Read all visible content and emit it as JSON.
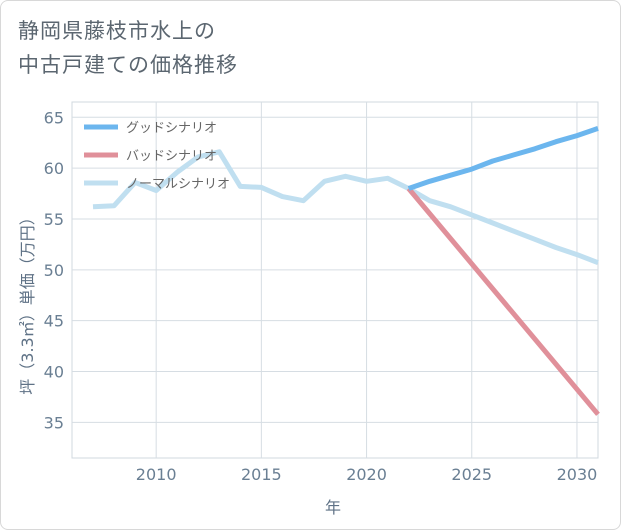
{
  "title": {
    "line1": "静岡県藤枝市水上の",
    "line2": "中古戸建ての価格推移"
  },
  "chart_data": {
    "type": "line",
    "xlabel": "年",
    "ylabel": "坪（3.3㎡）単価（万円）",
    "xlim": [
      2006,
      2031
    ],
    "ylim": [
      31.5,
      66.5
    ],
    "xticks": [
      2010,
      2015,
      2020,
      2025,
      2030
    ],
    "yticks": [
      35,
      40,
      45,
      50,
      55,
      60,
      65
    ],
    "grid": true,
    "legend_position": "top-left",
    "series": [
      {
        "name": "グッドシナリオ",
        "color": "#6cb6ee",
        "x": [
          2022,
          2023,
          2024,
          2025,
          2026,
          2027,
          2028,
          2029,
          2030,
          2031
        ],
        "values": [
          58.0,
          58.7,
          59.3,
          59.9,
          60.7,
          61.3,
          61.9,
          62.6,
          63.2,
          63.9
        ]
      },
      {
        "name": "バッドシナリオ",
        "color": "#e0909a",
        "x": [
          2022,
          2031
        ],
        "values": [
          58.0,
          35.8
        ]
      },
      {
        "name": "ノーマルシナリオ",
        "color": "#c0dff0",
        "x": [
          2007,
          2008,
          2009,
          2010,
          2011,
          2012,
          2013,
          2014,
          2015,
          2016,
          2017,
          2018,
          2019,
          2020,
          2021,
          2022,
          2023,
          2024,
          2025,
          2026,
          2027,
          2028,
          2029,
          2030,
          2031
        ],
        "values": [
          56.2,
          56.3,
          58.6,
          57.8,
          59.6,
          61.1,
          61.6,
          58.2,
          58.1,
          57.2,
          56.8,
          58.7,
          59.2,
          58.7,
          59.0,
          58.0,
          56.8,
          56.2,
          55.4,
          54.6,
          53.8,
          53.0,
          52.2,
          51.5,
          50.7
        ]
      }
    ]
  }
}
